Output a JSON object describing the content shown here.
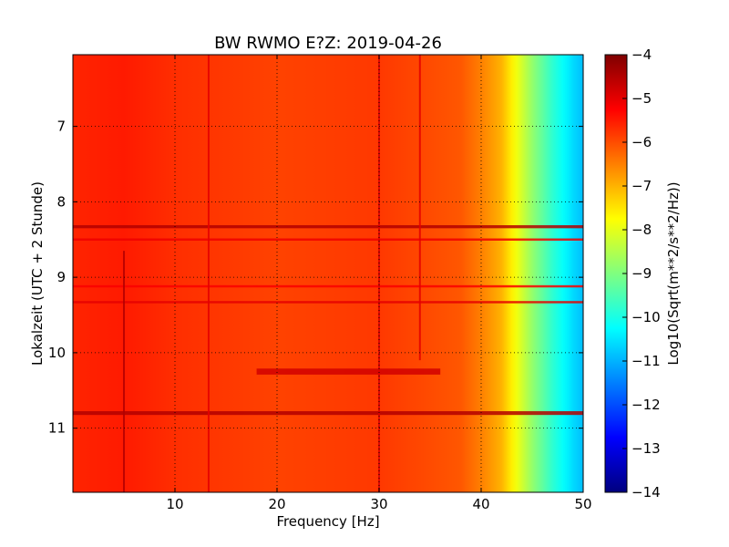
{
  "chart_data": {
    "type": "heatmap",
    "title": "BW RWMO E?Z: 2019-04-26",
    "xlabel": "Frequency [Hz]",
    "ylabel": "Lokalzeit (UTC + 2 Stunde)",
    "colorbar_label": "Log10(Sqrt(m**2/s**2/Hz))",
    "colormap": "jet",
    "grid": true,
    "grid_style": "dotted",
    "xlim": [
      0,
      50
    ],
    "ylim": [
      6.05,
      11.85
    ],
    "y_inverted": true,
    "x_ticks": [
      10,
      20,
      30,
      40,
      50
    ],
    "x_tick_labels": [
      "10",
      "20",
      "30",
      "40",
      "50"
    ],
    "y_ticks": [
      7,
      8,
      9,
      10,
      11
    ],
    "y_tick_labels": [
      "7",
      "8",
      "9",
      "10",
      "11"
    ],
    "clim": [
      -14,
      -4
    ],
    "colorbar_ticks": [
      -4,
      -5,
      -6,
      -7,
      -8,
      -9,
      -10,
      -11,
      -12,
      -13,
      -14
    ],
    "colorbar_tick_labels": [
      "−4",
      "−5",
      "−6",
      "−7",
      "−8",
      "−9",
      "−10",
      "−11",
      "−12",
      "−13",
      "−14"
    ],
    "spectral_profile": {
      "frequency_hz": [
        0,
        5,
        10,
        20,
        30,
        38,
        40,
        42,
        43,
        44,
        45,
        46,
        47,
        48,
        49,
        50
      ],
      "value": [
        -5.6,
        -5.5,
        -5.7,
        -5.9,
        -5.8,
        -6.1,
        -6.5,
        -7.0,
        -7.6,
        -8.2,
        -8.8,
        -9.3,
        -9.8,
        -10.2,
        -10.6,
        -10.9
      ]
    },
    "horizontal_bands": [
      {
        "time": 8.33,
        "width": 0.04,
        "value": -4.5
      },
      {
        "time": 8.5,
        "width": 0.03,
        "value": -5.1
      },
      {
        "time": 9.12,
        "width": 0.03,
        "value": -5.2
      },
      {
        "time": 9.33,
        "width": 0.03,
        "value": -5.0
      },
      {
        "time": 10.25,
        "width": 0.08,
        "value": -4.8,
        "f_start": 18,
        "f_end": 36
      },
      {
        "time": 10.8,
        "width": 0.05,
        "value": -4.5
      }
    ],
    "vertical_lines": [
      {
        "frequency": 5,
        "time_start": 8.65,
        "time_end": 11.85,
        "value": -4.5
      },
      {
        "frequency": 13.3,
        "time_start": 6.05,
        "time_end": 11.85,
        "value": -5.0
      },
      {
        "frequency": 30,
        "time_start": 6.05,
        "time_end": 11.85,
        "value": -4.9
      },
      {
        "frequency": 34,
        "time_start": 6.05,
        "time_end": 10.1,
        "value": -5.0
      }
    ]
  }
}
